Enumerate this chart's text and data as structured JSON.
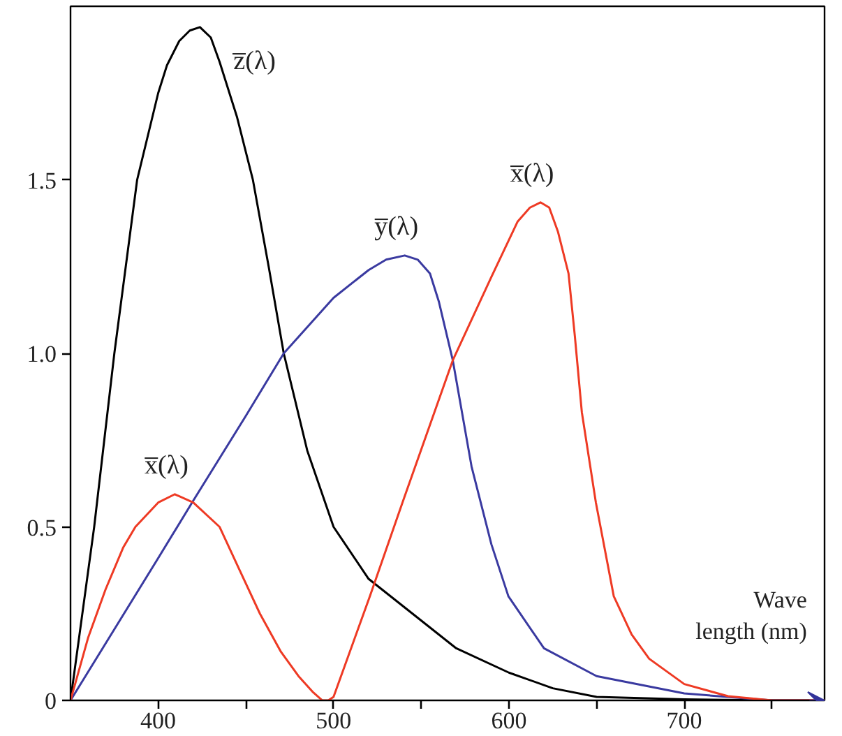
{
  "chart_data": {
    "type": "line",
    "xlabel": "Wave\nlength (nm)",
    "xlim": [
      350,
      780
    ],
    "ylim": [
      0,
      2.0
    ],
    "xticks": [
      400,
      {
        "value": 450,
        "label": null
      },
      500,
      {
        "value": 550,
        "label": null
      },
      600,
      {
        "value": 650,
        "label": null
      },
      700,
      {
        "value": 750,
        "label": null
      }
    ],
    "yticks": [
      0,
      0.5,
      {
        "value": 1.0,
        "label": "1.0"
      },
      1.5
    ],
    "grid": false,
    "marker": "none",
    "line_style": "solid",
    "series": [
      {
        "name": "z̅(λ)",
        "color": "#000000",
        "x": [
          350,
          363.5,
          375,
          388,
          400,
          405,
          412,
          418,
          423.8,
          430,
          435,
          445,
          454,
          463,
          471.6,
          485,
          500,
          520,
          545,
          570,
          600,
          625,
          650,
          700,
          750,
          780
        ],
        "values": [
          0,
          0.5,
          1.0,
          1.5,
          1.75,
          1.83,
          1.9,
          1.93,
          1.94,
          1.91,
          1.84,
          1.68,
          1.5,
          1.25,
          1.0,
          0.72,
          0.5,
          0.35,
          0.25,
          0.15,
          0.08,
          0.035,
          0.01,
          0.003,
          0,
          0
        ]
      },
      {
        "name": "y̅(λ)",
        "color": "#3a3aa0",
        "x": [
          350,
          400,
          419.8,
          450,
          471.6,
          500,
          520,
          530,
          540.6,
          548,
          555,
          560,
          568,
          578.7,
          590,
          599.7,
          620,
          650,
          700,
          750,
          780
        ],
        "values": [
          0,
          0.41,
          0.574,
          0.82,
          1.0,
          1.16,
          1.24,
          1.27,
          1.282,
          1.27,
          1.23,
          1.15,
          0.98,
          0.674,
          0.45,
          0.3,
          0.15,
          0.07,
          0.02,
          0,
          0
        ]
      },
      {
        "name": "x̅(λ)",
        "color": "#ee3a24",
        "x": [
          350,
          360,
          370,
          380,
          387,
          400,
          409.5,
          420,
          435,
          446,
          458,
          470,
          480,
          488,
          493.6,
          497,
          500,
          520.7,
          540,
          568,
          590,
          605,
          612,
          618,
          623,
          628,
          634,
          637.6,
          641.6,
          649.6,
          659.8,
          670,
          680,
          700,
          725,
          750,
          780
        ],
        "values": [
          0,
          0.18,
          0.32,
          0.44,
          0.5,
          0.57,
          0.594,
          0.57,
          0.5,
          0.38,
          0.25,
          0.14,
          0.07,
          0.025,
          0.0,
          0.0,
          0.01,
          0.3,
          0.58,
          0.98,
          1.22,
          1.38,
          1.42,
          1.435,
          1.42,
          1.35,
          1.23,
          1.05,
          0.83,
          0.57,
          0.3,
          0.19,
          0.12,
          0.047,
          0.012,
          0,
          0
        ]
      }
    ]
  }
}
